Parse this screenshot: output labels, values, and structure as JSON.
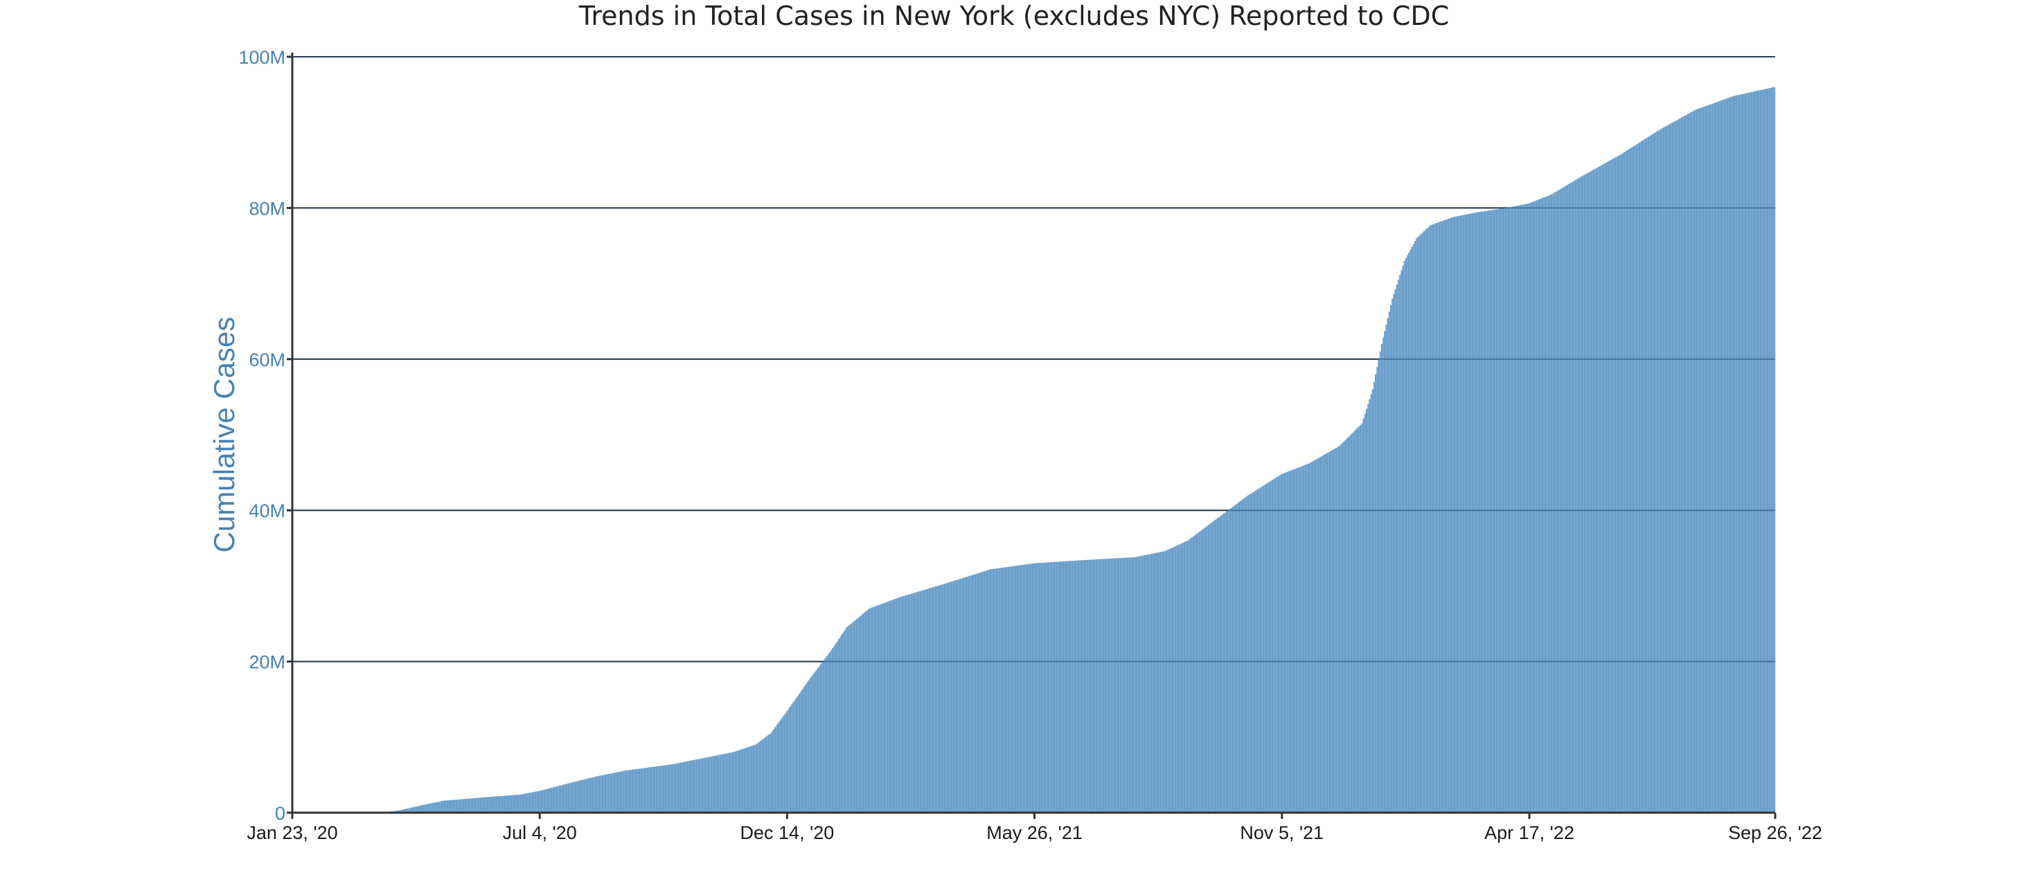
{
  "chart_data": {
    "type": "bar",
    "title": "Trends in Total Cases in New York (excludes NYC) Reported to CDC",
    "xlabel": "",
    "ylabel": "Cumulative Cases",
    "x_start": "2020-01-23",
    "x_end": "2022-09-26",
    "x_tick_labels": [
      "Jan 23, '20",
      "Jul 4, '20",
      "Dec 14, '20",
      "May 26, '21",
      "Nov 5, '21",
      "Apr 17, '22",
      "Sep 26, '22"
    ],
    "x_tick_days": [
      0,
      163,
      326,
      489,
      652,
      815,
      977
    ],
    "y_ticks": [
      0,
      20000000,
      40000000,
      60000000,
      80000000,
      100000000
    ],
    "y_tick_labels": [
      "0",
      "20M",
      "40M",
      "60M",
      "80M",
      "100M"
    ],
    "ylim": [
      0,
      100000000
    ],
    "grid": true,
    "bar_color": "#6a9ec9",
    "series": [
      {
        "name": "Cumulative Cases",
        "note_day_index": "days since Jan 23, '20; values interpolated daily between anchors",
        "anchors": [
          [
            0,
            0
          ],
          [
            40,
            0
          ],
          [
            60,
            50000
          ],
          [
            70,
            300000
          ],
          [
            85,
            1000000
          ],
          [
            100,
            1600000
          ],
          [
            130,
            2100000
          ],
          [
            150,
            2400000
          ],
          [
            163,
            2900000
          ],
          [
            180,
            3800000
          ],
          [
            200,
            4800000
          ],
          [
            220,
            5600000
          ],
          [
            250,
            6400000
          ],
          [
            270,
            7200000
          ],
          [
            290,
            8000000
          ],
          [
            305,
            9000000
          ],
          [
            315,
            10500000
          ],
          [
            326,
            13500000
          ],
          [
            340,
            17500000
          ],
          [
            355,
            21500000
          ],
          [
            365,
            24500000
          ],
          [
            380,
            27000000
          ],
          [
            400,
            28500000
          ],
          [
            430,
            30300000
          ],
          [
            460,
            32200000
          ],
          [
            489,
            33000000
          ],
          [
            520,
            33400000
          ],
          [
            555,
            33800000
          ],
          [
            575,
            34600000
          ],
          [
            590,
            36000000
          ],
          [
            610,
            39000000
          ],
          [
            630,
            42000000
          ],
          [
            652,
            44800000
          ],
          [
            670,
            46200000
          ],
          [
            690,
            48500000
          ],
          [
            705,
            51500000
          ],
          [
            712,
            56000000
          ],
          [
            718,
            62000000
          ],
          [
            725,
            68000000
          ],
          [
            733,
            73000000
          ],
          [
            741,
            76000000
          ],
          [
            750,
            77700000
          ],
          [
            765,
            78800000
          ],
          [
            780,
            79400000
          ],
          [
            800,
            80000000
          ],
          [
            815,
            80600000
          ],
          [
            830,
            81800000
          ],
          [
            850,
            84200000
          ],
          [
            875,
            87000000
          ],
          [
            900,
            90200000
          ],
          [
            925,
            93000000
          ],
          [
            950,
            94800000
          ],
          [
            977,
            96000000
          ]
        ]
      }
    ]
  }
}
